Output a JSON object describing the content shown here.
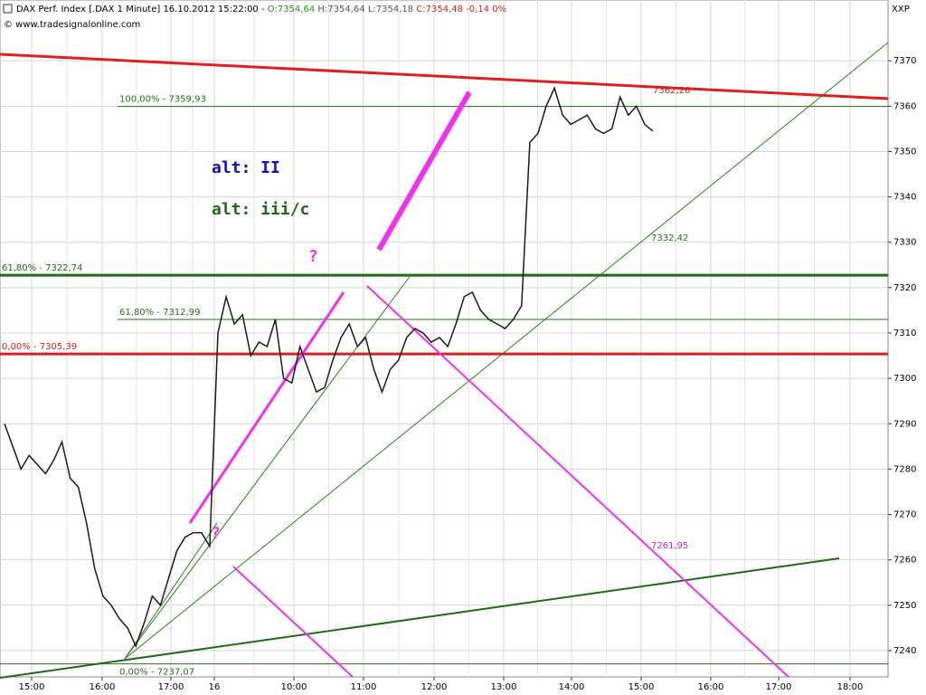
{
  "header": {
    "instrument": "DAX Perf. Index [.DAX  1 Minute] 16.10.2012 15:22:00 -",
    "open": "O:7354,64",
    "high": "H:7354,64",
    "low": "L:7354,18",
    "close": "C:7354,48",
    "change": "-0,14 0%",
    "source": "© www.tradesignalonline.com",
    "corner": "XXP"
  },
  "chart_data": {
    "type": "line",
    "color": "#1a1a1a",
    "x_labels": [
      "15:00",
      "16:00",
      "17:00",
      "16",
      "10:00",
      "11:00",
      "12:00",
      "13:00",
      "14:00",
      "15:00",
      "16:00",
      "17:00",
      "18:00"
    ],
    "values": [
      7290,
      7285,
      7280,
      7283,
      7281,
      7279,
      7282,
      7286,
      7278,
      7276,
      7268,
      7258,
      7252,
      7250,
      7247,
      7245,
      7241,
      7246,
      7252,
      7250,
      7256,
      7262,
      7265,
      7266,
      7266,
      7263,
      7310,
      7318,
      7312,
      7314,
      7305,
      7308,
      7307,
      7313,
      7300,
      7299,
      7307,
      7302,
      7297,
      7298,
      7304,
      7309,
      7312,
      7307,
      7309,
      7302,
      7297,
      7302,
      7304,
      7309,
      7311,
      7310,
      7308,
      7309,
      7307,
      7312,
      7318,
      7319,
      7315,
      7313,
      7312,
      7311,
      7313,
      7316,
      7352,
      7354,
      7360,
      7364,
      7358,
      7356,
      7357,
      7358,
      7355,
      7354,
      7355,
      7362,
      7358,
      7360,
      7356,
      7354.5
    ],
    "ylim": [
      7234.2,
      7383.4
    ],
    "yticks": [
      7240,
      7250,
      7260,
      7270,
      7280,
      7290,
      7300,
      7310,
      7320,
      7330,
      7340,
      7350,
      7360,
      7370
    ],
    "grid": true,
    "levels": [
      {
        "value": 7359.93,
        "label": "100,00% - 7359,93",
        "color": "#2e6b1e"
      },
      {
        "value": 7322.74,
        "label": "61,80% - 7322,74",
        "color": "#1f6b14"
      },
      {
        "value": 7312.99,
        "label": "61,80% - 7312,99",
        "color": "#2e6b1e"
      },
      {
        "value": 7305.39,
        "label": "0,00% - 7305,39",
        "color": "#d42020"
      },
      {
        "value": 7237.07,
        "label": "0,00% - 7237,07",
        "color": "#2e6b1e"
      }
    ],
    "line_labels": [
      "7362,26",
      "7332,42",
      "7261,95"
    ],
    "annotations": [
      "alt: II",
      "alt: iii/c",
      "?",
      "?"
    ]
  }
}
